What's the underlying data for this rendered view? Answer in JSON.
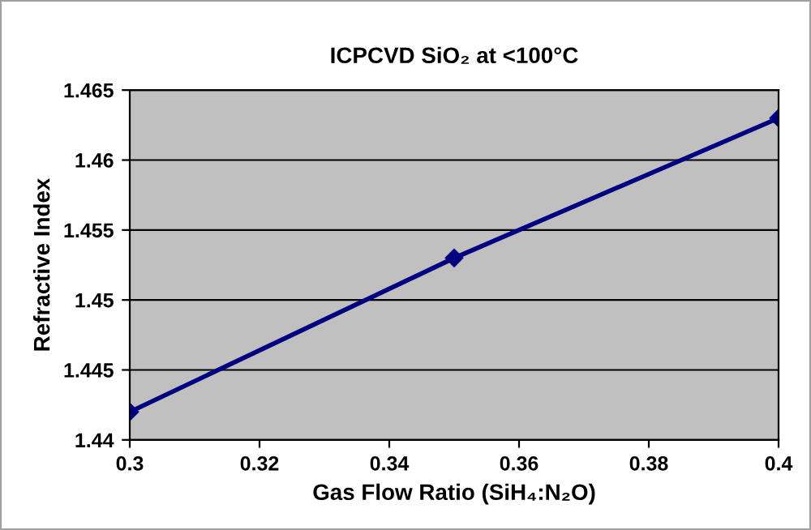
{
  "chart_data": {
    "type": "line",
    "title": "ICPCVD SiO₂ at <100°C",
    "xlabel": "Gas Flow Ratio (SiH₄:N₂O)",
    "ylabel": "Refractive Index",
    "x": [
      0.3,
      0.35,
      0.4
    ],
    "series": [
      {
        "color": "#000080",
        "values": [
          1.442,
          1.453,
          1.463
        ]
      }
    ],
    "xlim": [
      0.3,
      0.4
    ],
    "xticks": [
      0.3,
      0.32,
      0.34,
      0.36,
      0.38,
      0.4
    ],
    "ylim": [
      1.44,
      1.465
    ],
    "yticks": [
      1.44,
      1.445,
      1.45,
      1.455,
      1.46,
      1.465
    ],
    "grid": "y",
    "marker": "diamond",
    "line_style": "solid",
    "legend": false
  }
}
